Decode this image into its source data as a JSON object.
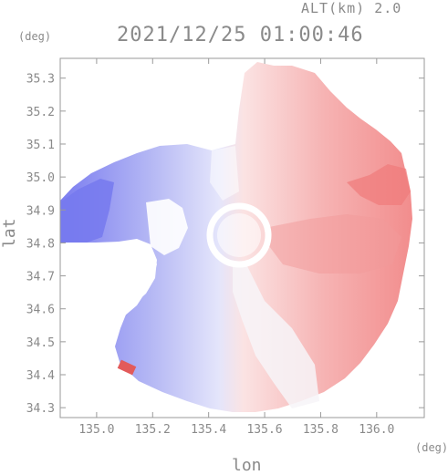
{
  "header": {
    "altitude": "ALT(km) 2.0",
    "timestamp": "2021/12/25 01:00:46"
  },
  "axes": {
    "y_unit": "(deg)",
    "x_unit": "(deg)",
    "y_label": "lat",
    "x_label": "lon",
    "lat_ticks": [
      "35.3",
      "35.2",
      "35.1",
      "35.0",
      "34.9",
      "34.8",
      "34.7",
      "34.6",
      "34.5",
      "34.4",
      "34.3"
    ],
    "lon_ticks": [
      "135.0",
      "135.2",
      "135.4",
      "135.6",
      "135.8",
      "136.0"
    ]
  },
  "map": {
    "lon_range": [
      134.87,
      136.17
    ],
    "lat_range": [
      34.27,
      35.36
    ],
    "radar_center_lon": 135.52,
    "radar_center_lat": 34.86,
    "approaching_color": "#7b7df0",
    "receding_color": "#f07b7b"
  }
}
